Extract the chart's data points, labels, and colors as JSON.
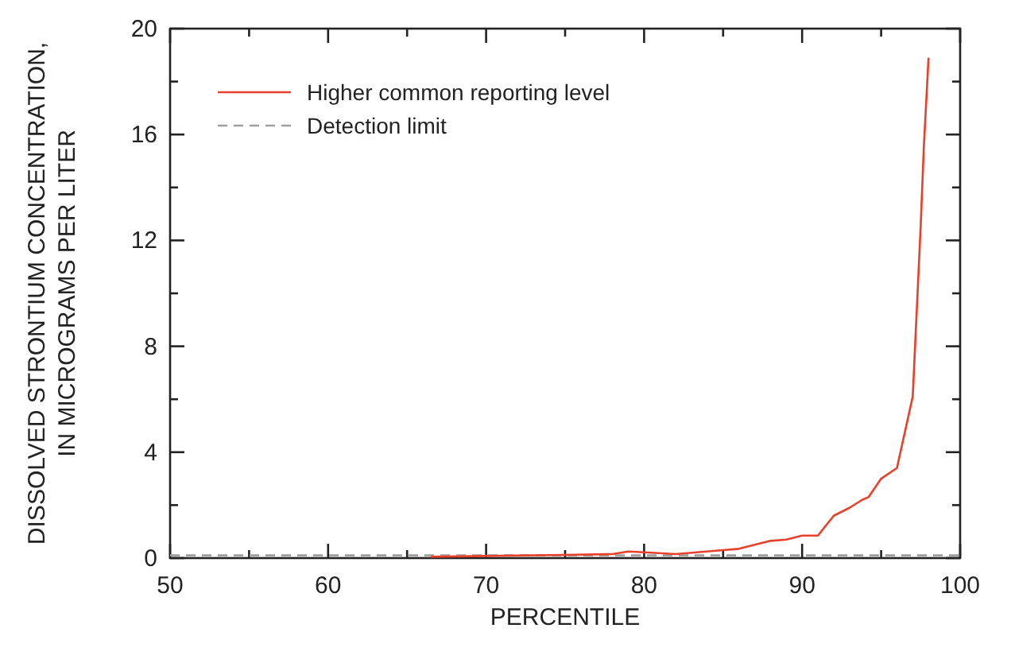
{
  "chart_data": {
    "type": "line",
    "xlabel": "PERCENTILE",
    "ylabel": "DISSOLVED STRONTIUM CONCENTRATION,\nIN MICROGRAMS PER LITER",
    "xlim": [
      50,
      100
    ],
    "ylim": [
      0,
      20
    ],
    "xticks": [
      50,
      {
        "value": 55,
        "label": null
      },
      60,
      {
        "value": 65,
        "label": null
      },
      70,
      {
        "value": 75,
        "label": null
      },
      80,
      {
        "value": 85,
        "label": null
      },
      90,
      {
        "value": 95,
        "label": null
      },
      100
    ],
    "yticks": [
      0,
      {
        "value": 2,
        "label": null
      },
      4,
      {
        "value": 6,
        "label": null
      },
      8,
      {
        "value": 10,
        "label": null
      },
      12,
      {
        "value": 14,
        "label": null
      },
      16,
      {
        "value": 18,
        "label": null
      },
      20
    ],
    "grid": false,
    "legend": "top left",
    "line_style": "solid",
    "series": [
      {
        "name": "Higher common reporting level",
        "color": "#e8402a",
        "x": [
          66.5,
          70,
          75,
          78,
          79,
          80,
          82,
          85,
          86,
          87,
          88,
          89,
          90,
          91,
          92,
          93,
          93.8,
          94.2,
          95,
          96,
          97,
          97.5,
          97.7,
          98
        ],
        "values": [
          0.05,
          0.08,
          0.12,
          0.15,
          0.25,
          0.22,
          0.15,
          0.3,
          0.35,
          0.5,
          0.65,
          0.7,
          0.85,
          0.85,
          1.6,
          1.9,
          2.2,
          2.3,
          3.0,
          3.4,
          6.1,
          12.5,
          15.5,
          18.9
        ]
      }
    ],
    "ref_lines": [
      {
        "axis": "y",
        "value": 0.1,
        "label": "Detection limit",
        "color": "#a0a0a0",
        "line_style": "dashed"
      }
    ]
  }
}
